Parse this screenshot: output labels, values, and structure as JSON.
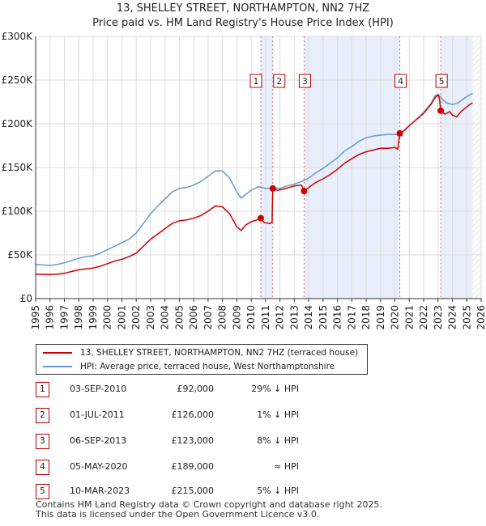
{
  "title_line1": "13, SHELLEY STREET, NORTHAMPTON, NN2 7HZ",
  "title_line2": "Price paid vs. HM Land Registry's House Price Index (HPI)",
  "chart_data": {
    "type": "line",
    "xlim": [
      1995,
      2026
    ],
    "ylim": [
      0,
      300000
    ],
    "x_ticks": [
      "1995",
      "1996",
      "1997",
      "1998",
      "1999",
      "2000",
      "2001",
      "2002",
      "2003",
      "2004",
      "2005",
      "2006",
      "2007",
      "2008",
      "2009",
      "2010",
      "2011",
      "2012",
      "2013",
      "2014",
      "2015",
      "2016",
      "2017",
      "2018",
      "2019",
      "2020",
      "2021",
      "2022",
      "2023",
      "2024",
      "2025",
      "2026"
    ],
    "y_ticks": [
      {
        "value": 0,
        "label": "£0"
      },
      {
        "value": 50000,
        "label": "£50K"
      },
      {
        "value": 100000,
        "label": "£100K"
      },
      {
        "value": 150000,
        "label": "£150K"
      },
      {
        "value": 200000,
        "label": "£200K"
      },
      {
        "value": 250000,
        "label": "£250K"
      },
      {
        "value": 300000,
        "label": "£300K"
      }
    ],
    "colors": {
      "property": "#cc0000",
      "hpi": "#6699cc",
      "shade": "#e8eefa",
      "grid": "#dddddd"
    },
    "series": [
      {
        "name": "13, SHELLEY STREET, NORTHAMPTON, NN2 7HZ (terraced house)",
        "points": [
          [
            1995.0,
            28000
          ],
          [
            1995.5,
            27800
          ],
          [
            1996.0,
            27500
          ],
          [
            1996.5,
            28000
          ],
          [
            1997.0,
            29000
          ],
          [
            1997.5,
            31000
          ],
          [
            1998.0,
            33000
          ],
          [
            1998.5,
            34000
          ],
          [
            1999.0,
            35000
          ],
          [
            1999.5,
            37000
          ],
          [
            2000.0,
            40000
          ],
          [
            2000.5,
            43000
          ],
          [
            2001.0,
            45000
          ],
          [
            2001.5,
            48000
          ],
          [
            2002.0,
            52000
          ],
          [
            2002.5,
            60000
          ],
          [
            2003.0,
            68000
          ],
          [
            2003.5,
            74000
          ],
          [
            2004.0,
            80000
          ],
          [
            2004.5,
            86000
          ],
          [
            2005.0,
            89000
          ],
          [
            2005.5,
            90000
          ],
          [
            2006.0,
            92000
          ],
          [
            2006.5,
            95000
          ],
          [
            2007.0,
            100000
          ],
          [
            2007.5,
            106000
          ],
          [
            2008.0,
            105000
          ],
          [
            2008.5,
            97000
          ],
          [
            2009.0,
            82000
          ],
          [
            2009.3,
            78000
          ],
          [
            2009.6,
            84000
          ],
          [
            2010.0,
            88000
          ],
          [
            2010.4,
            90000
          ],
          [
            2010.67,
            92000
          ],
          [
            2010.9,
            87000
          ],
          [
            2011.3,
            86000
          ],
          [
            2011.45,
            87000
          ],
          [
            2011.5,
            126000
          ],
          [
            2011.8,
            124000
          ],
          [
            2012.2,
            125000
          ],
          [
            2012.6,
            127000
          ],
          [
            2013.0,
            129000
          ],
          [
            2013.5,
            130000
          ],
          [
            2013.68,
            123000
          ],
          [
            2014.0,
            127000
          ],
          [
            2014.5,
            133000
          ],
          [
            2015.0,
            137000
          ],
          [
            2015.5,
            142000
          ],
          [
            2016.0,
            148000
          ],
          [
            2016.5,
            155000
          ],
          [
            2017.0,
            160000
          ],
          [
            2017.5,
            165000
          ],
          [
            2018.0,
            168000
          ],
          [
            2018.5,
            170000
          ],
          [
            2019.0,
            172000
          ],
          [
            2019.5,
            172000
          ],
          [
            2020.0,
            173000
          ],
          [
            2020.2,
            171000
          ],
          [
            2020.34,
            189000
          ],
          [
            2020.7,
            193000
          ],
          [
            2021.0,
            198000
          ],
          [
            2021.5,
            205000
          ],
          [
            2022.0,
            212000
          ],
          [
            2022.5,
            222000
          ],
          [
            2022.8,
            230000
          ],
          [
            2023.0,
            233000
          ],
          [
            2023.1,
            229000
          ],
          [
            2023.19,
            215000
          ],
          [
            2023.5,
            211000
          ],
          [
            2023.8,
            214000
          ],
          [
            2024.0,
            210000
          ],
          [
            2024.3,
            208000
          ],
          [
            2024.6,
            214000
          ],
          [
            2024.9,
            218000
          ],
          [
            2025.2,
            222000
          ],
          [
            2025.4,
            224000
          ]
        ]
      },
      {
        "name": "HPI: Average price, terraced house, West Northamptonshire",
        "points": [
          [
            1995.0,
            39000
          ],
          [
            1995.5,
            38500
          ],
          [
            1996.0,
            38000
          ],
          [
            1996.5,
            39000
          ],
          [
            1997.0,
            41000
          ],
          [
            1997.5,
            43500
          ],
          [
            1998.0,
            46000
          ],
          [
            1998.5,
            48000
          ],
          [
            1999.0,
            49000
          ],
          [
            1999.5,
            52000
          ],
          [
            2000.0,
            56000
          ],
          [
            2000.5,
            60000
          ],
          [
            2001.0,
            64000
          ],
          [
            2001.5,
            68000
          ],
          [
            2002.0,
            75000
          ],
          [
            2002.5,
            86000
          ],
          [
            2003.0,
            97000
          ],
          [
            2003.5,
            106000
          ],
          [
            2004.0,
            114000
          ],
          [
            2004.5,
            122000
          ],
          [
            2005.0,
            126000
          ],
          [
            2005.5,
            127000
          ],
          [
            2006.0,
            130000
          ],
          [
            2006.5,
            134000
          ],
          [
            2007.0,
            140000
          ],
          [
            2007.5,
            146000
          ],
          [
            2008.0,
            146000
          ],
          [
            2008.5,
            138000
          ],
          [
            2009.0,
            122000
          ],
          [
            2009.3,
            115000
          ],
          [
            2009.6,
            119000
          ],
          [
            2010.0,
            124000
          ],
          [
            2010.5,
            128000
          ],
          [
            2011.0,
            126000
          ],
          [
            2011.5,
            127000
          ],
          [
            2012.0,
            126000
          ],
          [
            2012.5,
            129000
          ],
          [
            2013.0,
            131000
          ],
          [
            2013.5,
            134000
          ],
          [
            2014.0,
            138000
          ],
          [
            2014.5,
            144000
          ],
          [
            2015.0,
            149000
          ],
          [
            2015.5,
            155000
          ],
          [
            2016.0,
            161000
          ],
          [
            2016.5,
            169000
          ],
          [
            2017.0,
            174000
          ],
          [
            2017.5,
            180000
          ],
          [
            2018.0,
            184000
          ],
          [
            2018.5,
            186000
          ],
          [
            2019.0,
            187000
          ],
          [
            2019.5,
            188000
          ],
          [
            2020.0,
            188000
          ],
          [
            2020.3,
            187000
          ],
          [
            2020.6,
            192000
          ],
          [
            2021.0,
            198000
          ],
          [
            2021.5,
            205000
          ],
          [
            2022.0,
            213000
          ],
          [
            2022.5,
            223000
          ],
          [
            2022.8,
            232000
          ],
          [
            2023.0,
            234000
          ],
          [
            2023.3,
            228000
          ],
          [
            2023.6,
            224000
          ],
          [
            2024.0,
            222000
          ],
          [
            2024.4,
            224000
          ],
          [
            2024.8,
            229000
          ],
          [
            2025.2,
            233000
          ],
          [
            2025.4,
            235000
          ]
        ]
      }
    ],
    "events": [
      {
        "num": "1",
        "x": 2010.67,
        "value": 92000
      },
      {
        "num": "2",
        "x": 2011.5,
        "value": 126000
      },
      {
        "num": "3",
        "x": 2013.68,
        "value": 123000
      },
      {
        "num": "4",
        "x": 2020.34,
        "value": 189000
      },
      {
        "num": "5",
        "x": 2023.19,
        "value": 215000
      }
    ],
    "shaded_ranges": [
      [
        2010.67,
        2011.5
      ],
      [
        2013.68,
        2020.34
      ],
      [
        2023.19,
        2025.4
      ]
    ],
    "hatch_from": 2025.4
  },
  "legend": {
    "property_label": "13, SHELLEY STREET, NORTHAMPTON, NN2 7HZ (terraced house)",
    "hpi_label": "HPI: Average price, terraced house, West Northamptonshire"
  },
  "sales": [
    {
      "num": "1",
      "date": "03-SEP-2010",
      "price": "£92,000",
      "hpi": "29% ↓ HPI"
    },
    {
      "num": "2",
      "date": "01-JUL-2011",
      "price": "£126,000",
      "hpi": "1% ↓ HPI"
    },
    {
      "num": "3",
      "date": "06-SEP-2013",
      "price": "£123,000",
      "hpi": "8% ↓ HPI"
    },
    {
      "num": "4",
      "date": "05-MAY-2020",
      "price": "£189,000",
      "hpi": "≈ HPI"
    },
    {
      "num": "5",
      "date": "10-MAR-2023",
      "price": "£215,000",
      "hpi": "5% ↓ HPI"
    }
  ],
  "footer_line1": "Contains HM Land Registry data © Crown copyright and database right 2025.",
  "footer_line2": "This data is licensed under the Open Government Licence v3.0."
}
